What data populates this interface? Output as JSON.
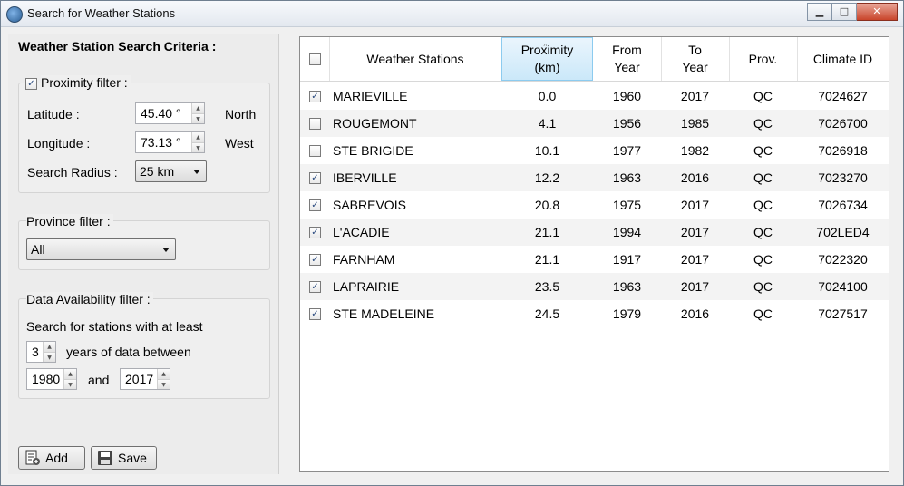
{
  "window": {
    "title": "Search for Weather Stations"
  },
  "criteria": {
    "title": "Weather Station Search Criteria :",
    "proximity": {
      "label": "Proximity filter :",
      "checked": true,
      "latitude_label": "Latitude :",
      "latitude_value": "45.40 °",
      "latitude_dir": "North",
      "longitude_label": "Longitude :",
      "longitude_value": "73.13 °",
      "longitude_dir": "West",
      "radius_label": "Search Radius :",
      "radius_value": "25 km"
    },
    "province": {
      "label": "Province filter :",
      "value": "All"
    },
    "availability": {
      "label": "Data Availability filter :",
      "line1": "Search for stations with at least",
      "years_value": "3",
      "years_text": "years of data between",
      "start_year": "1980",
      "and_text": "and",
      "end_year": "2017"
    }
  },
  "buttons": {
    "add": "Add",
    "save": "Save"
  },
  "table": {
    "headers": {
      "station": "Weather Stations",
      "proximity_1": "Proximity",
      "proximity_2": "(km)",
      "from_1": "From",
      "from_2": "Year",
      "to_1": "To",
      "to_2": "Year",
      "prov": "Prov.",
      "climate": "Climate ID"
    },
    "rows": [
      {
        "checked": true,
        "name": "MARIEVILLE",
        "proximity": "0.0",
        "from": "1960",
        "to": "2017",
        "prov": "QC",
        "climate_id": "7024627"
      },
      {
        "checked": false,
        "name": "ROUGEMONT",
        "proximity": "4.1",
        "from": "1956",
        "to": "1985",
        "prov": "QC",
        "climate_id": "7026700"
      },
      {
        "checked": false,
        "name": "STE BRIGIDE",
        "proximity": "10.1",
        "from": "1977",
        "to": "1982",
        "prov": "QC",
        "climate_id": "7026918"
      },
      {
        "checked": true,
        "name": "IBERVILLE",
        "proximity": "12.2",
        "from": "1963",
        "to": "2016",
        "prov": "QC",
        "climate_id": "7023270"
      },
      {
        "checked": true,
        "name": "SABREVOIS",
        "proximity": "20.8",
        "from": "1975",
        "to": "2017",
        "prov": "QC",
        "climate_id": "7026734"
      },
      {
        "checked": true,
        "name": "L'ACADIE",
        "proximity": "21.1",
        "from": "1994",
        "to": "2017",
        "prov": "QC",
        "climate_id": "702LED4"
      },
      {
        "checked": true,
        "name": "FARNHAM",
        "proximity": "21.1",
        "from": "1917",
        "to": "2017",
        "prov": "QC",
        "climate_id": "7022320"
      },
      {
        "checked": true,
        "name": "LAPRAIRIE",
        "proximity": "23.5",
        "from": "1963",
        "to": "2017",
        "prov": "QC",
        "climate_id": "7024100"
      },
      {
        "checked": true,
        "name": "STE MADELEINE",
        "proximity": "24.5",
        "from": "1979",
        "to": "2016",
        "prov": "QC",
        "climate_id": "7027517"
      }
    ]
  }
}
